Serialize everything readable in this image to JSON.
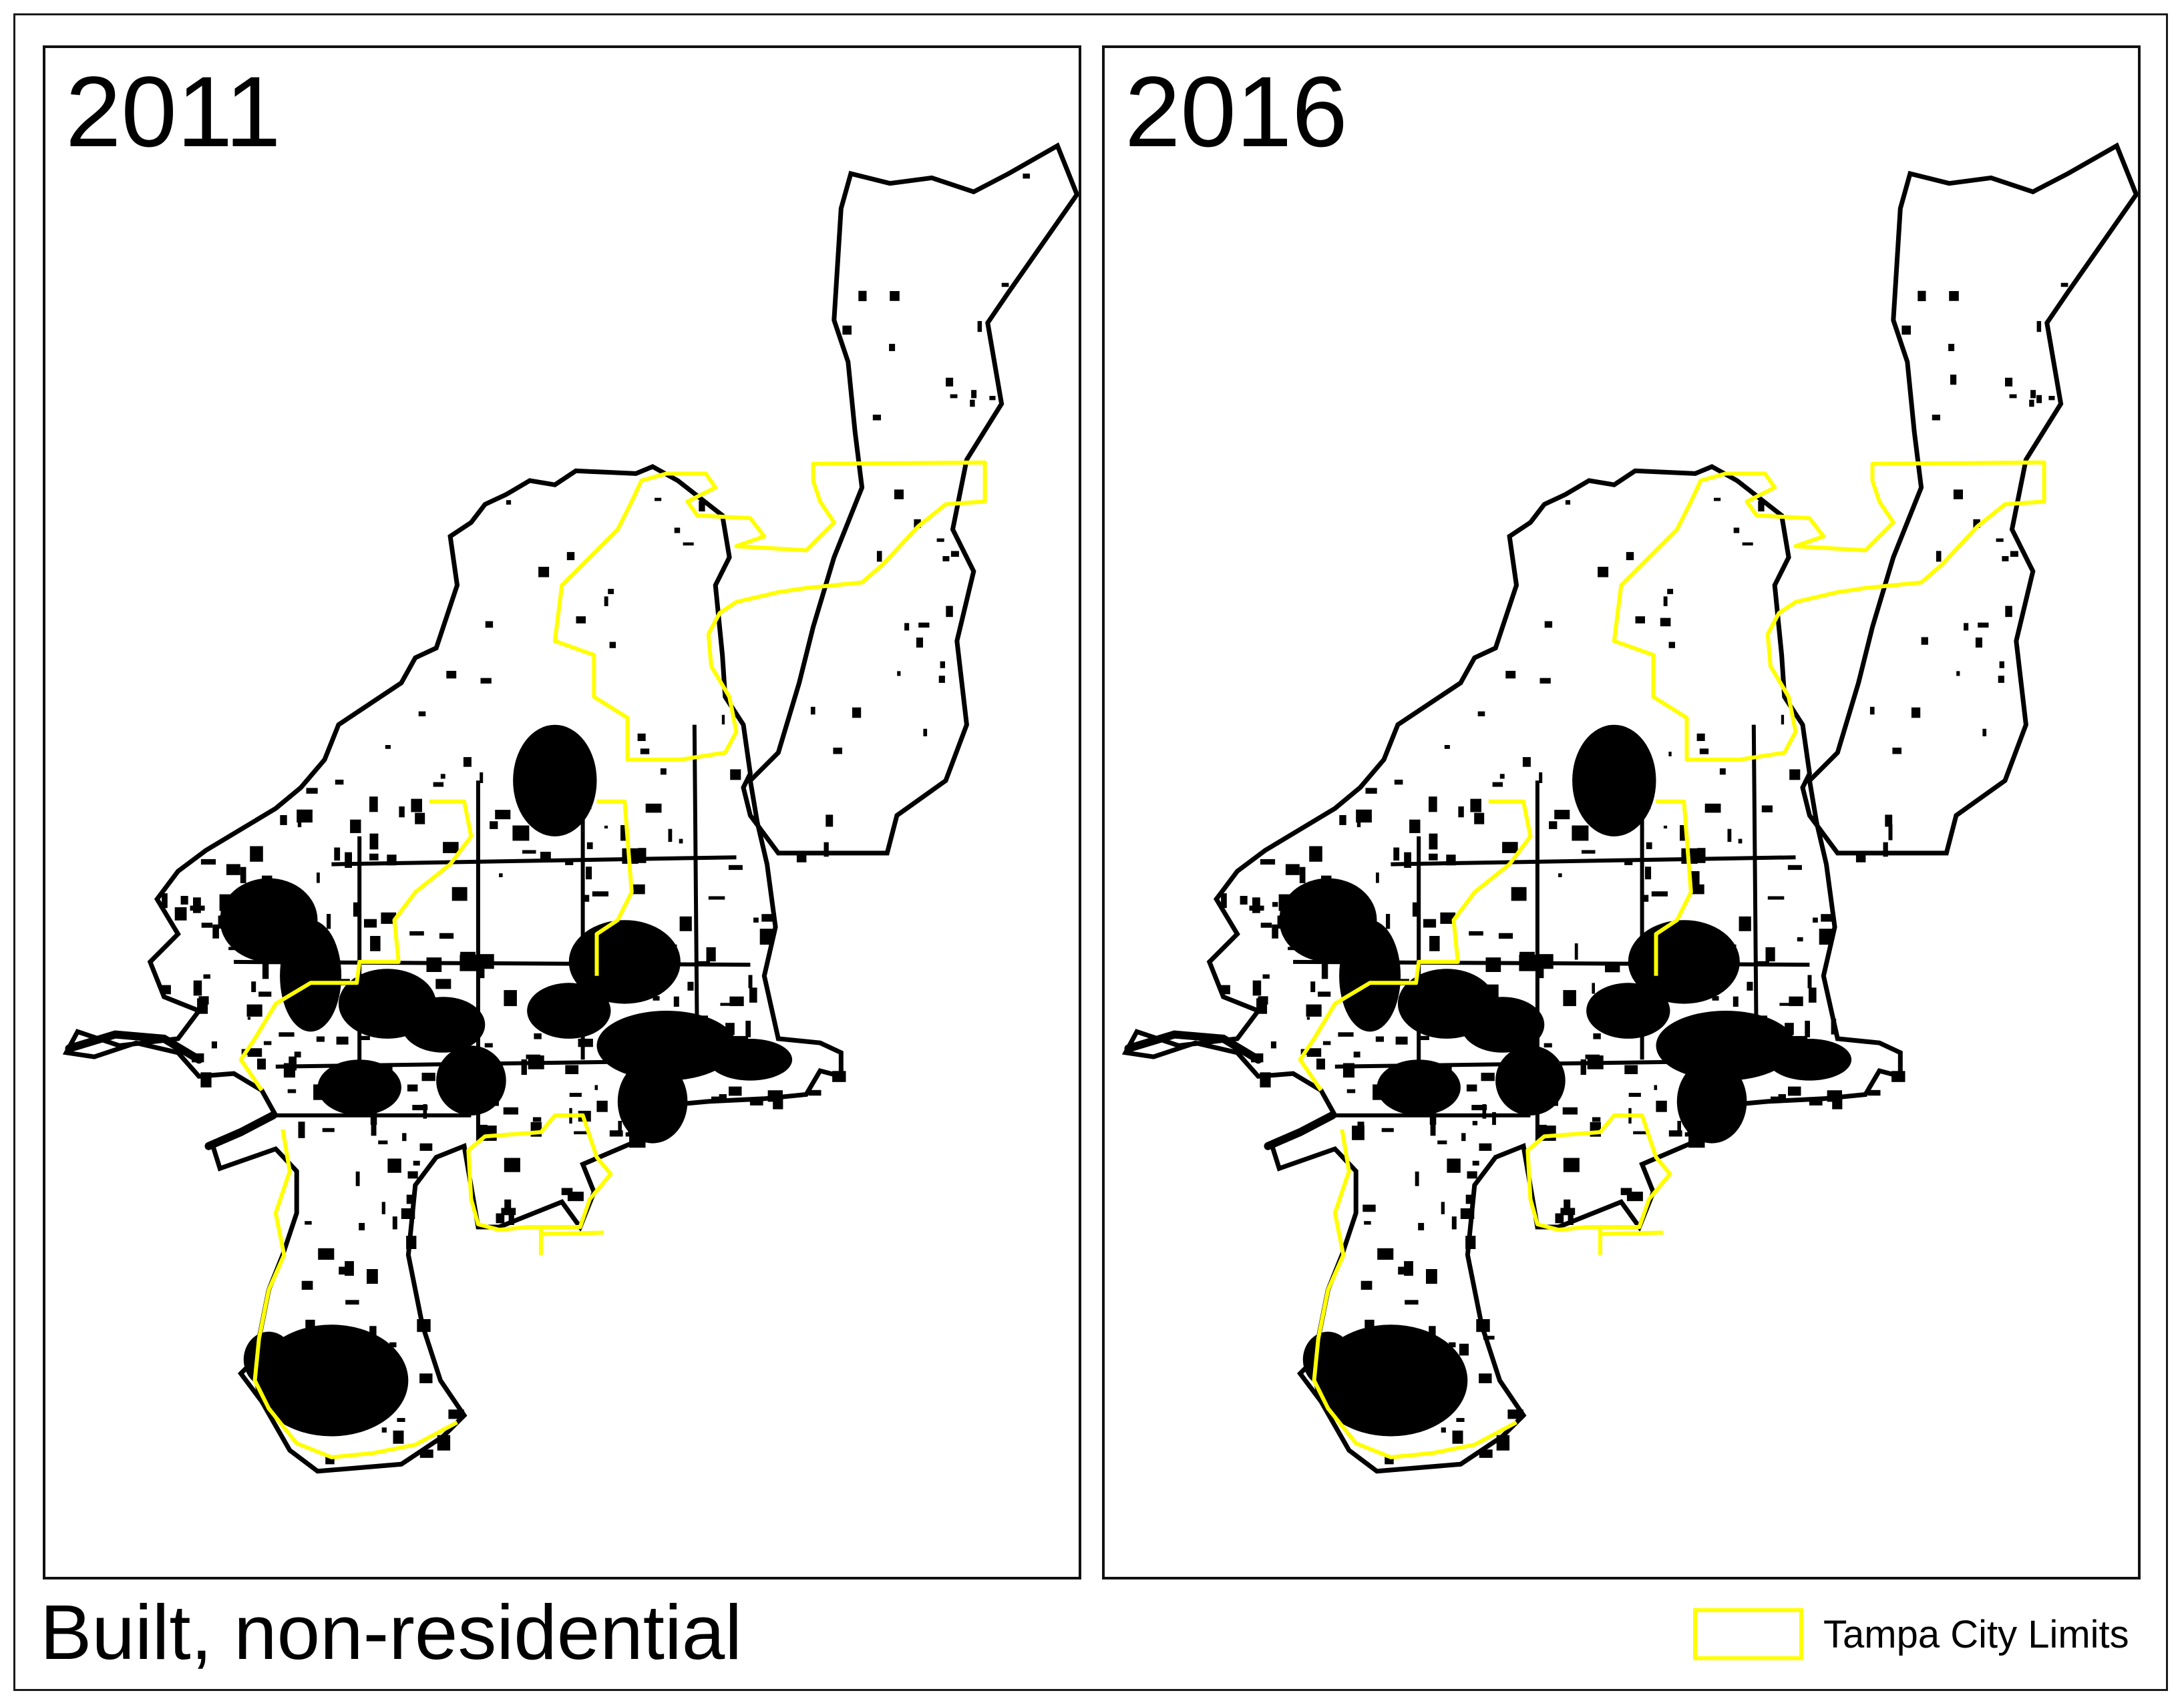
{
  "panels": [
    {
      "year": "2011"
    },
    {
      "year": "2016"
    }
  ],
  "caption": "Built, non-residential",
  "legend": {
    "label": "Tampa City Limits",
    "color": "#ffff00"
  },
  "colors": {
    "built": "#000000",
    "boundary": "#000000",
    "city_limits": "#ffff00",
    "background": "#ffffff"
  }
}
